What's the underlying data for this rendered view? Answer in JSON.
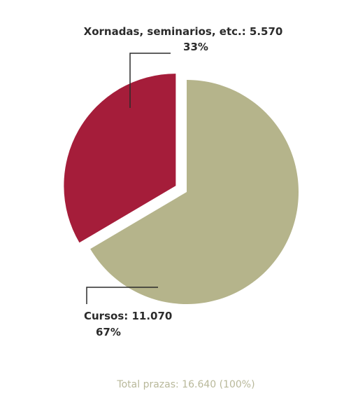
{
  "chart_data": {
    "type": "pie",
    "slices": [
      {
        "name": "Xornadas, seminarios, etc.",
        "value": 5570,
        "value_label": "5.570",
        "percent_label": "33%",
        "color": "#a51d3a",
        "exploded": true
      },
      {
        "name": "Cursos",
        "value": 11070,
        "value_label": "11.070",
        "percent_label": "67%",
        "color": "#b5b48b",
        "exploded": false
      }
    ],
    "labels": {
      "xornadas_line1": "Xornadas, seminarios, etc.: 5.570",
      "xornadas_line2": "33%",
      "cursos_line1": "Cursos: 11.070",
      "cursos_line2": "67%"
    },
    "total_label": "Total prazas: 16.640 (100%)"
  }
}
